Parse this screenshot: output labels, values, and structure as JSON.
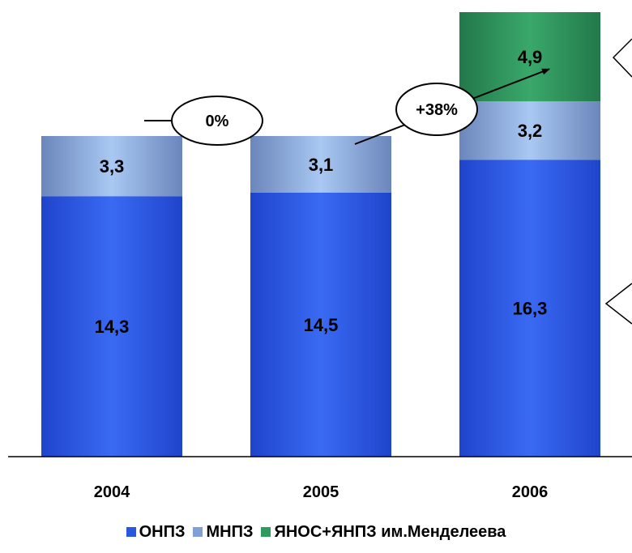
{
  "chart_data": {
    "type": "bar",
    "stacked": true,
    "categories": [
      "2004",
      "2005",
      "2006"
    ],
    "series": [
      {
        "name": "ОНПЗ",
        "values": [
          14.3,
          14.5,
          16.3
        ],
        "labels": [
          "14,3",
          "14,5",
          "16,3"
        ]
      },
      {
        "name": "МНПЗ",
        "values": [
          3.3,
          3.1,
          3.2
        ],
        "labels": [
          "3,3",
          "3,1",
          "3,2"
        ]
      },
      {
        "name": "ЯНОС+ЯНПЗ им.Менделеева",
        "values": [
          0,
          0,
          4.9
        ],
        "labels": [
          "",
          "",
          "4,9"
        ]
      }
    ],
    "growth_annotations": [
      {
        "from": "2004",
        "to": "2005",
        "label": "0%"
      },
      {
        "from": "2005",
        "to": "2006",
        "label": "+38%"
      }
    ],
    "legend_position": "bottom",
    "grid": false
  },
  "colors": {
    "ОНПЗ": "#2b56e0",
    "МНПЗ": "#7f9fd6",
    "ЯНОС+ЯНПЗ им.Менделеева": "#2f9a5e"
  }
}
